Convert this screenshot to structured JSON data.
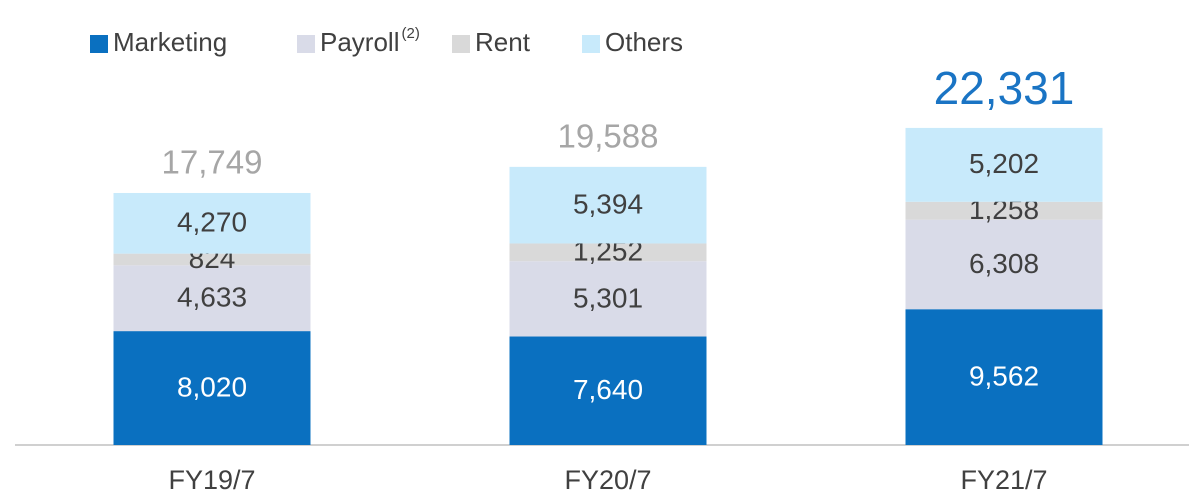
{
  "chart_data": {
    "type": "stacked_bar",
    "categories": [
      "FY19/7",
      "FY20/7",
      "FY21/7"
    ],
    "series": [
      {
        "name": "Marketing",
        "color": "#0a70c0",
        "values": [
          8020,
          7640,
          9562
        ],
        "value_labels": [
          "8,020",
          "7,640",
          "9,562"
        ]
      },
      {
        "name": "Payroll",
        "footnote": "(2)",
        "color": "#d9dbe8",
        "values": [
          4633,
          5301,
          6308
        ],
        "value_labels": [
          "4,633",
          "5,301",
          "6,308"
        ]
      },
      {
        "name": "Rent",
        "color": "#d9d9d9",
        "values": [
          824,
          1252,
          1258
        ],
        "value_labels": [
          "824",
          "1,252",
          "1,258"
        ]
      },
      {
        "name": "Others",
        "color": "#c8eafb",
        "values": [
          4270,
          5394,
          5202
        ],
        "value_labels": [
          "4,270",
          "5,394",
          "5,202"
        ]
      }
    ],
    "totals": [
      17749,
      19588,
      22331
    ],
    "total_labels": [
      "17,749",
      "19,588",
      "22,331"
    ],
    "total_colors": [
      "#a6a6a6",
      "#a6a6a6",
      "#1a74c4"
    ],
    "ylim": [
      0,
      25000
    ],
    "legend": "top-left"
  }
}
